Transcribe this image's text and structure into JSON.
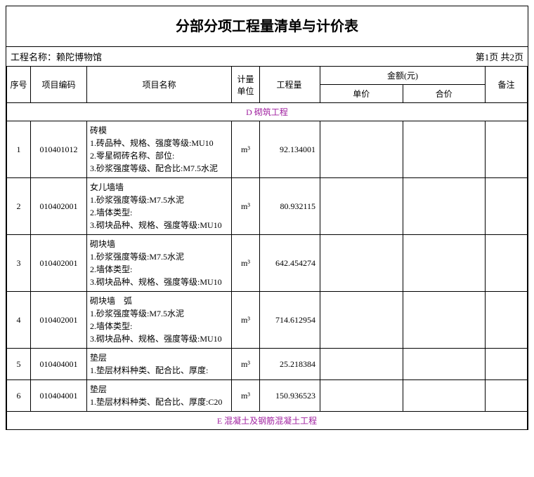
{
  "title": "分部分项工程量清单与计价表",
  "project_label": "工程名称：",
  "project_name": "赖陀博物馆",
  "page_info": "第1页 共2页",
  "headers": {
    "seq": "序号",
    "code": "项目编码",
    "name": "项目名称",
    "unit": "计量单位",
    "qty": "工程量",
    "amount": "金额(元)",
    "unit_price": "单价",
    "total_price": "合价",
    "remark": "备注"
  },
  "section_d": "D 砌筑工程",
  "section_e": "E 混凝土及钢筋混凝土工程",
  "rows": [
    {
      "seq": "1",
      "code": "010401012",
      "name_l0": "砖模",
      "name_l1": "1.砖品种、规格、强度等级:MU10",
      "name_l2": "2.零星砌砖名称、部位:",
      "name_l3": "3.砂浆强度等级、配合比:M7.5水泥",
      "unit": "m³",
      "qty": "92.134001"
    },
    {
      "seq": "2",
      "code": "010402001",
      "name_l0": "女儿墙墙",
      "name_l1": "1.砂浆强度等级:M7.5水泥",
      "name_l2": "2.墙体类型:",
      "name_l3": "3.砌块品种、规格、强度等级:MU10",
      "unit": "m³",
      "qty": "80.932115"
    },
    {
      "seq": "3",
      "code": "010402001",
      "name_l0": "砌块墙",
      "name_l1": "1.砂浆强度等级:M7.5水泥",
      "name_l2": "2.墙体类型:",
      "name_l3": "3.砌块品种、规格、强度等级:MU10",
      "unit": "m³",
      "qty": "642.454274"
    },
    {
      "seq": "4",
      "code": "010402001",
      "name_l0": "砌块墙　弧",
      "name_l1": "1.砂浆强度等级:M7.5水泥",
      "name_l2": "2.墙体类型:",
      "name_l3": "3.砌块品种、规格、强度等级:MU10",
      "unit": "m³",
      "qty": "714.612954"
    },
    {
      "seq": "5",
      "code": "010404001",
      "name_l0": "垫层",
      "name_l1": "1.垫层材料种类、配合比、厚度:",
      "name_l2": "",
      "name_l3": "",
      "unit": "m³",
      "qty": "25.218384"
    },
    {
      "seq": "6",
      "code": "010404001",
      "name_l0": "垫层",
      "name_l1": "1.垫层材料种类、配合比、厚度:C20",
      "name_l2": "",
      "name_l3": "",
      "unit": "m³",
      "qty": "150.936523"
    }
  ]
}
